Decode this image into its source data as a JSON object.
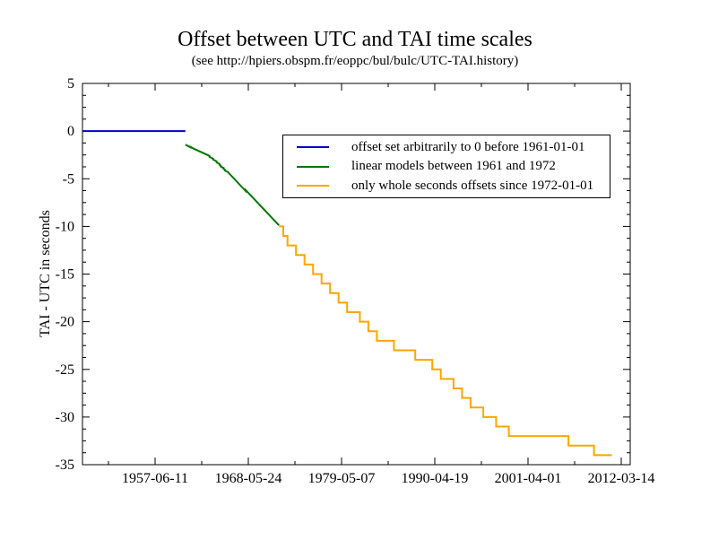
{
  "title": "Offset between UTC and TAI time scales",
  "subtitle": "(see http://hpiers.obspm.fr/eoppc/bul/bulc/UTC-TAI.history)",
  "chart_data": {
    "type": "line",
    "title": "Offset between UTC and TAI time scales",
    "subtitle": "(see http://hpiers.obspm.fr/eoppc/bul/bulc/UTC-TAI.history)",
    "ylabel": "TAI - UTC in seconds",
    "xlabel": "",
    "grid": false,
    "x_unit_note": "x positions are Modified Julian Dates, tick labels rendered as calendar dates",
    "xlim_mjd": [
      32885,
      56385
    ],
    "ylim": [
      -35,
      5
    ],
    "x_axis": {
      "ticks": [
        {
          "mjd": 36000,
          "label": "1957-06-11"
        },
        {
          "mjd": 40000,
          "label": "1968-05-24"
        },
        {
          "mjd": 44000,
          "label": "1979-05-07"
        },
        {
          "mjd": 48000,
          "label": "1990-04-19"
        },
        {
          "mjd": 52000,
          "label": "2001-04-01"
        },
        {
          "mjd": 56000,
          "label": "2012-03-14"
        }
      ],
      "minor_ticks_mjd": [
        34000,
        38000,
        42000,
        46000,
        50000,
        54000
      ]
    },
    "y_axis": {
      "ticks": [
        5,
        0,
        -5,
        -10,
        -15,
        -20,
        -25,
        -30,
        -35
      ],
      "minor_step": 1.25
    },
    "legend": {
      "position": "inside top center-right",
      "border": true
    },
    "series": [
      {
        "name": "offset-before-1961",
        "label": "offset set arbitrarily to 0 before 1961-01-01",
        "color": "#0000cc",
        "mode": "line",
        "points": [
          [
            32885,
            0
          ],
          [
            37300,
            0
          ]
        ]
      },
      {
        "name": "linear-models-1961-1972",
        "label": "linear models between 1961 and 1972",
        "color": "#007700",
        "mode": "line",
        "points": [
          [
            37300,
            -1.42
          ],
          [
            37512,
            -1.7
          ],
          [
            37512,
            -1.65
          ],
          [
            37665,
            -1.85
          ],
          [
            38334,
            -2.6
          ],
          [
            38334,
            -2.7
          ],
          [
            38395,
            -2.77
          ],
          [
            38486,
            -2.88
          ],
          [
            38486,
            -2.98
          ],
          [
            38639,
            -3.18
          ],
          [
            38639,
            -3.28
          ],
          [
            38761,
            -3.44
          ],
          [
            38761,
            -3.54
          ],
          [
            38820,
            -3.62
          ],
          [
            38820,
            -3.72
          ],
          [
            38942,
            -3.88
          ],
          [
            38942,
            -3.98
          ],
          [
            39004,
            -4.06
          ],
          [
            39004,
            -4.16
          ],
          [
            39126,
            -4.31
          ],
          [
            39887,
            -6.29
          ],
          [
            39887,
            -6.19
          ],
          [
            41317,
            -9.89
          ]
        ]
      },
      {
        "name": "whole-second-offsets-since-1972",
        "label": "only whole seconds offsets since 1972-01-01",
        "color": "#ffa500",
        "mode": "step",
        "end_mjd": 55600,
        "points": [
          [
            41317,
            -10
          ],
          [
            41499,
            -11
          ],
          [
            41683,
            -12
          ],
          [
            42048,
            -13
          ],
          [
            42413,
            -14
          ],
          [
            42778,
            -15
          ],
          [
            43144,
            -16
          ],
          [
            43509,
            -17
          ],
          [
            43874,
            -18
          ],
          [
            44239,
            -19
          ],
          [
            44786,
            -20
          ],
          [
            45151,
            -21
          ],
          [
            45516,
            -22
          ],
          [
            46247,
            -23
          ],
          [
            47161,
            -24
          ],
          [
            47892,
            -25
          ],
          [
            48257,
            -26
          ],
          [
            48804,
            -27
          ],
          [
            49169,
            -28
          ],
          [
            49534,
            -29
          ],
          [
            50083,
            -30
          ],
          [
            50630,
            -31
          ],
          [
            51179,
            -32
          ],
          [
            53736,
            -33
          ],
          [
            54832,
            -34
          ]
        ]
      }
    ]
  }
}
